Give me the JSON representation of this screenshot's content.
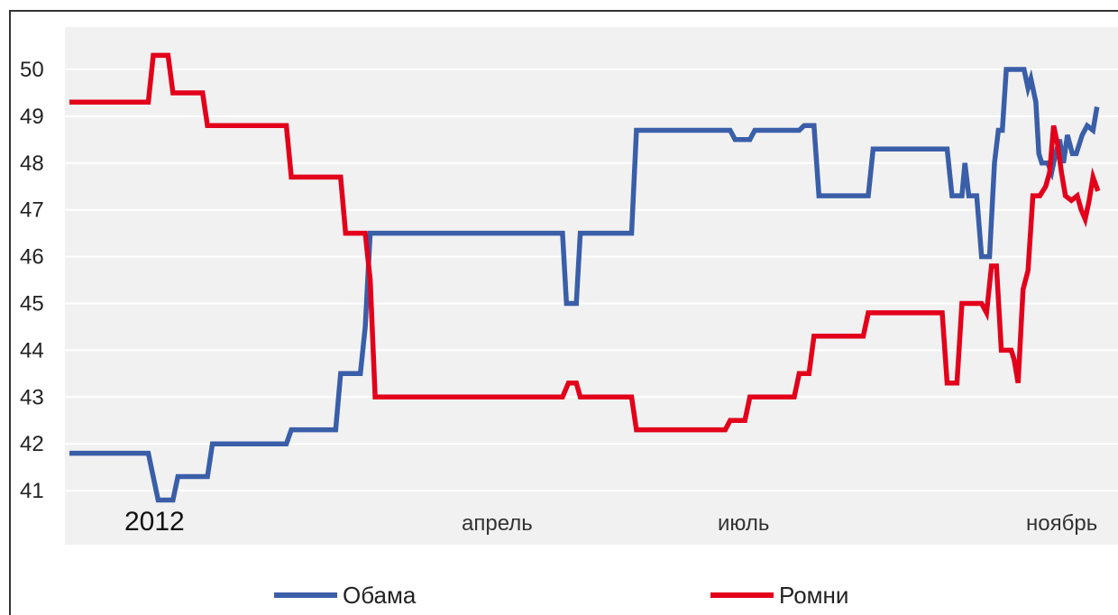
{
  "chart_data": {
    "type": "line",
    "ylim": [
      40,
      51
    ],
    "yticks": [
      41,
      42,
      43,
      44,
      45,
      46,
      47,
      48,
      49,
      50
    ],
    "x_tick_labels": [
      "2012",
      "апрель",
      "июль",
      "ноябрь"
    ],
    "legend_position": "bottom",
    "grid": true,
    "series": [
      {
        "name": "Обама",
        "color": "#3a5ea8",
        "points": [
          [
            0,
            41.8
          ],
          [
            8,
            41.8
          ],
          [
            9,
            40.8
          ],
          [
            10.5,
            40.8
          ],
          [
            11,
            41.3
          ],
          [
            14,
            41.3
          ],
          [
            14.5,
            42
          ],
          [
            22,
            42
          ],
          [
            22.5,
            42.3
          ],
          [
            27,
            42.3
          ],
          [
            27.5,
            43.5
          ],
          [
            29.5,
            43.5
          ],
          [
            30,
            44.5
          ],
          [
            30.5,
            46.5
          ],
          [
            50,
            46.5
          ],
          [
            50.4,
            45
          ],
          [
            51.4,
            45
          ],
          [
            51.8,
            46.5
          ],
          [
            57,
            46.5
          ],
          [
            57.5,
            48.7
          ],
          [
            67,
            48.7
          ],
          [
            67.5,
            48.5
          ],
          [
            69,
            48.5
          ],
          [
            69.5,
            48.7
          ],
          [
            74,
            48.7
          ],
          [
            74.5,
            48.8
          ],
          [
            75.5,
            48.8
          ],
          [
            76,
            47.3
          ],
          [
            81,
            47.3
          ],
          [
            81.5,
            48.3
          ],
          [
            89,
            48.3
          ],
          [
            89.5,
            47.3
          ],
          [
            90.5,
            47.3
          ],
          [
            90.8,
            48
          ],
          [
            91.2,
            47.3
          ],
          [
            92,
            47.3
          ],
          [
            92.5,
            46
          ],
          [
            93.3,
            46
          ],
          [
            93.8,
            48
          ],
          [
            94.2,
            48.7
          ],
          [
            94.6,
            48.7
          ],
          [
            95,
            50
          ],
          [
            96.8,
            50
          ],
          [
            97.2,
            49.6
          ],
          [
            97.5,
            49.8
          ],
          [
            98,
            49.3
          ],
          [
            98.3,
            48.2
          ],
          [
            98.6,
            48
          ],
          [
            99.2,
            48
          ],
          [
            99.6,
            47.8
          ],
          [
            100,
            48.2
          ],
          [
            100.4,
            48.5
          ],
          [
            100.8,
            48
          ],
          [
            101.2,
            48.6
          ],
          [
            101.7,
            48.2
          ],
          [
            102.1,
            48.2
          ],
          [
            102.7,
            48.6
          ],
          [
            103.2,
            48.8
          ],
          [
            103.8,
            48.7
          ],
          [
            104.2,
            49.2
          ]
        ]
      },
      {
        "name": "Ромни",
        "color": "#e3001b",
        "points": [
          [
            0,
            49.3
          ],
          [
            8,
            49.3
          ],
          [
            8.5,
            50.3
          ],
          [
            10,
            50.3
          ],
          [
            10.5,
            49.5
          ],
          [
            13.5,
            49.5
          ],
          [
            14,
            48.8
          ],
          [
            22,
            48.8
          ],
          [
            22.5,
            47.7
          ],
          [
            27.5,
            47.7
          ],
          [
            28,
            46.5
          ],
          [
            30,
            46.5
          ],
          [
            30.5,
            45.5
          ],
          [
            31,
            43
          ],
          [
            50,
            43
          ],
          [
            50.6,
            43.3
          ],
          [
            51.4,
            43.3
          ],
          [
            51.8,
            43
          ],
          [
            57,
            43
          ],
          [
            57.5,
            42.3
          ],
          [
            66.5,
            42.3
          ],
          [
            67,
            42.5
          ],
          [
            68.5,
            42.5
          ],
          [
            69,
            43
          ],
          [
            73.5,
            43
          ],
          [
            74,
            43.5
          ],
          [
            75,
            43.5
          ],
          [
            75.5,
            44.3
          ],
          [
            80.5,
            44.3
          ],
          [
            81,
            44.8
          ],
          [
            88.5,
            44.8
          ],
          [
            89,
            43.3
          ],
          [
            90,
            43.3
          ],
          [
            90.5,
            45
          ],
          [
            92.5,
            45
          ],
          [
            93,
            44.8
          ],
          [
            93.5,
            45.8
          ],
          [
            94,
            45.8
          ],
          [
            94.5,
            44
          ],
          [
            95.5,
            44
          ],
          [
            95.8,
            43.8
          ],
          [
            96.2,
            43.3
          ],
          [
            96.7,
            45.3
          ],
          [
            97.2,
            45.7
          ],
          [
            97.7,
            47.3
          ],
          [
            98.4,
            47.3
          ],
          [
            99,
            47.5
          ],
          [
            99.4,
            47.8
          ],
          [
            99.8,
            48.8
          ],
          [
            100.2,
            48.4
          ],
          [
            100.6,
            47.8
          ],
          [
            101,
            47.3
          ],
          [
            101.6,
            47.2
          ],
          [
            102.2,
            47.3
          ],
          [
            102.6,
            47
          ],
          [
            103,
            46.8
          ],
          [
            103.4,
            47.2
          ],
          [
            103.8,
            47.7
          ],
          [
            104.3,
            47.4
          ]
        ]
      }
    ]
  }
}
